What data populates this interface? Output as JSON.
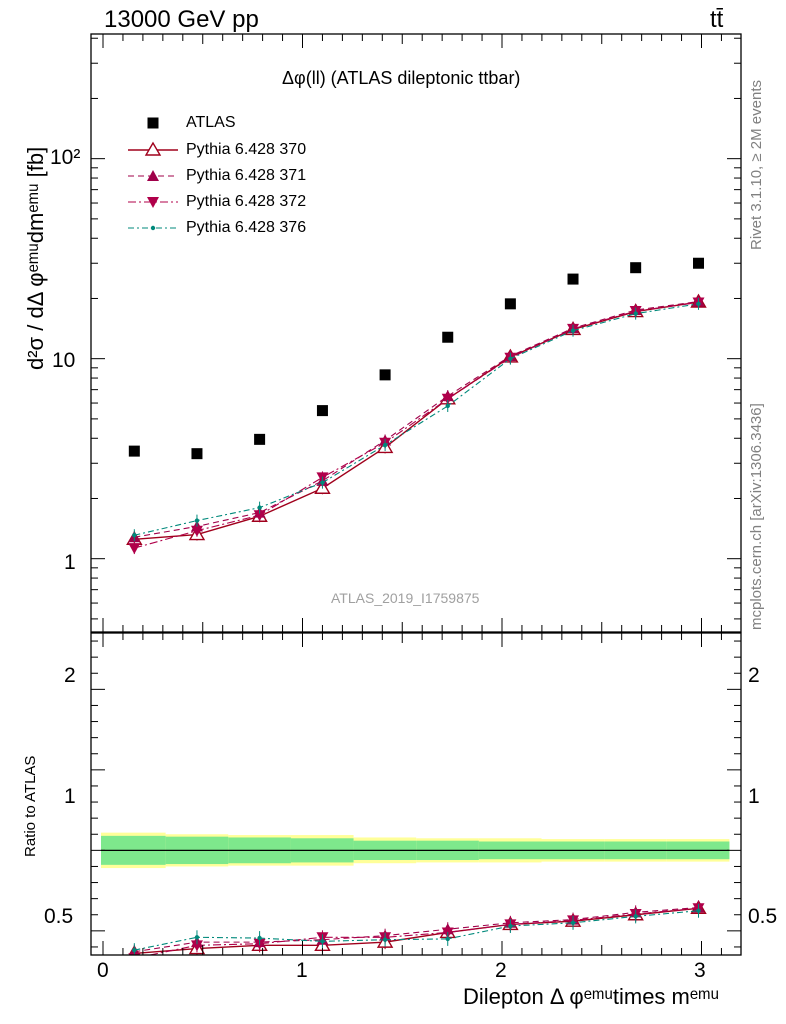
{
  "header": {
    "energy_label": "13000 GeV pp",
    "process_label": "tt̄"
  },
  "side_text": {
    "rivet": "Rivet 3.1.10, ≥ 2M events",
    "source": "mcplots.cern.ch [arXiv:1306.3436]"
  },
  "colors": {
    "data": "#000000",
    "py370": "#a0001c",
    "py371": "#a0004a",
    "py372": "#b0004a",
    "py376": "#00897b",
    "band_inner": "#7ee88c",
    "band_outer": "#ffff99"
  },
  "chart_data": [
    {
      "type": "line",
      "title": "Δφ(ll) (ATLAS dileptonic ttbar)",
      "watermark": "ATLAS_2019_I1759875",
      "ylabel": "d²σ / dΔ φᵉᵐᵘdmᵉᵐᵘ [fb]",
      "yscale": "log",
      "xlim": [
        -0.08,
        3.2
      ],
      "ylim": [
        0.43,
        420
      ],
      "y_ticks": [
        "1",
        "10",
        "10²"
      ],
      "x": [
        0.157,
        0.471,
        0.785,
        1.1,
        1.414,
        1.728,
        2.042,
        2.356,
        2.67,
        2.985
      ],
      "series": [
        {
          "name": "ATLAS",
          "marker": "square",
          "values": [
            3.45,
            3.35,
            3.95,
            5.5,
            8.3,
            12.8,
            18.8,
            25.0,
            28.5,
            30.0
          ]
        },
        {
          "name": "Pythia 6.428 370",
          "marker": "open-triangle-up",
          "style": "solid",
          "values": [
            1.25,
            1.32,
            1.63,
            2.25,
            3.6,
            6.3,
            10.2,
            14.0,
            17.2,
            19.2
          ]
        },
        {
          "name": "Pythia 6.428 371",
          "marker": "triangle-up",
          "style": "dashed",
          "values": [
            1.28,
            1.45,
            1.7,
            2.45,
            3.9,
            6.5,
            10.3,
            14.2,
            17.5,
            19.3
          ]
        },
        {
          "name": "Pythia 6.428 372",
          "marker": "triangle-down",
          "style": "dashdot",
          "values": [
            1.13,
            1.38,
            1.65,
            2.55,
            3.8,
            6.3,
            10.1,
            14.1,
            17.3,
            19.1
          ]
        },
        {
          "name": "Pythia 6.428 376",
          "marker": "dot",
          "style": "dashdot",
          "values": [
            1.31,
            1.55,
            1.8,
            2.4,
            3.7,
            5.8,
            10.0,
            13.8,
            16.8,
            18.8
          ]
        }
      ]
    },
    {
      "type": "line",
      "ylabel": "Ratio to ATLAS",
      "xlabel": "Dilepton Δ φᵉᵐᵘtimes mᵉᵐᵘ",
      "xlim": [
        -0.08,
        3.2
      ],
      "ylim": [
        0.35,
        2.35
      ],
      "x_ticks": [
        "0",
        "1",
        "2",
        "3"
      ],
      "y_ticks": [
        "0.5",
        "1",
        "2"
      ],
      "band_inner": [
        [
          -0.01,
          0.314,
          0.09
        ],
        [
          0.314,
          0.628,
          0.085
        ],
        [
          0.628,
          0.942,
          0.08
        ],
        [
          0.942,
          1.256,
          0.075
        ],
        [
          1.256,
          1.57,
          0.06
        ],
        [
          1.57,
          1.884,
          0.06
        ],
        [
          1.884,
          2.198,
          0.055
        ],
        [
          2.198,
          2.512,
          0.055
        ],
        [
          2.512,
          2.826,
          0.055
        ],
        [
          2.826,
          3.14,
          0.055
        ]
      ],
      "band_outer": [
        [
          -0.01,
          0.314,
          0.11
        ],
        [
          0.314,
          0.628,
          0.1
        ],
        [
          0.628,
          0.942,
          0.095
        ],
        [
          0.942,
          1.256,
          0.095
        ],
        [
          1.256,
          1.57,
          0.08
        ],
        [
          1.57,
          1.884,
          0.075
        ],
        [
          1.884,
          2.198,
          0.075
        ],
        [
          2.198,
          2.512,
          0.07
        ],
        [
          2.512,
          2.826,
          0.07
        ],
        [
          2.826,
          3.14,
          0.07
        ]
      ],
      "series": [
        {
          "name": "Pythia 6.428 370",
          "values": [
            0.36,
            0.39,
            0.41,
            0.41,
            0.43,
            0.49,
            0.54,
            0.56,
            0.6,
            0.64
          ]
        },
        {
          "name": "Pythia 6.428 371",
          "values": [
            0.37,
            0.43,
            0.43,
            0.445,
            0.47,
            0.51,
            0.55,
            0.57,
            0.615,
            0.645
          ]
        },
        {
          "name": "Pythia 6.428 372",
          "values": [
            0.33,
            0.41,
            0.42,
            0.46,
            0.46,
            0.49,
            0.54,
            0.565,
            0.605,
            0.64
          ]
        },
        {
          "name": "Pythia 6.428 376",
          "values": [
            0.38,
            0.46,
            0.455,
            0.435,
            0.445,
            0.45,
            0.53,
            0.55,
            0.59,
            0.625
          ]
        }
      ]
    }
  ]
}
